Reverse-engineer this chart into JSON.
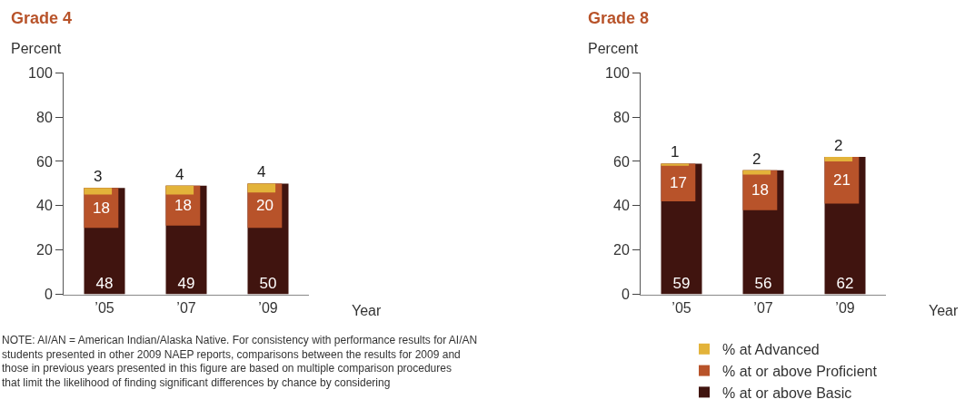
{
  "chart_data": [
    {
      "type": "bar",
      "title": "Grade 4",
      "ylabel": "Percent",
      "xlabel": "Year",
      "categories": [
        "’05",
        "’07",
        "’09"
      ],
      "series": [
        {
          "color": "#40140f",
          "values": [
            48,
            49,
            50
          ]
        },
        {
          "color": "#b8532a",
          "values": [
            18,
            18,
            20
          ],
          "base": [
            30,
            31,
            30
          ]
        },
        {
          "color": "#e3b33a",
          "values": [
            3,
            4,
            4
          ],
          "base": [
            45,
            45,
            46
          ]
        }
      ],
      "ylim": [
        0,
        100
      ],
      "yticks": [
        0,
        20,
        40,
        60,
        80,
        100
      ],
      "legend": false,
      "data_labels": true,
      "annotations": [
        "NOTE: AI/AN = American Indian/Alaska Native. For consistency with performance results for AI/AN students presented in other 2009 NAEP reports, comparisons between the results for 2009 and those in previous years presented in this figure are based on multiple comparison procedures that limit the likelihood of finding significant differences by chance by considering"
      ]
    },
    {
      "type": "bar",
      "title": "Grade 8",
      "ylabel": "Percent",
      "xlabel": "Year",
      "categories": [
        "’05",
        "’07",
        "’09"
      ],
      "series": [
        {
          "name": "% at or above Basic",
          "color": "#40140f",
          "values": [
            59,
            56,
            62
          ]
        },
        {
          "name": "% at or above Proficient",
          "color": "#b8532a",
          "values": [
            17,
            18,
            21
          ],
          "base": [
            42,
            38,
            41
          ]
        },
        {
          "name": "% at Advanced",
          "color": "#e3b33a",
          "values": [
            1,
            2,
            2
          ],
          "base": [
            58,
            54,
            60
          ]
        }
      ],
      "ylim": [
        0,
        100
      ],
      "yticks": [
        0,
        20,
        40,
        60,
        80,
        100
      ],
      "legend": "bottom",
      "data_labels": true
    }
  ]
}
